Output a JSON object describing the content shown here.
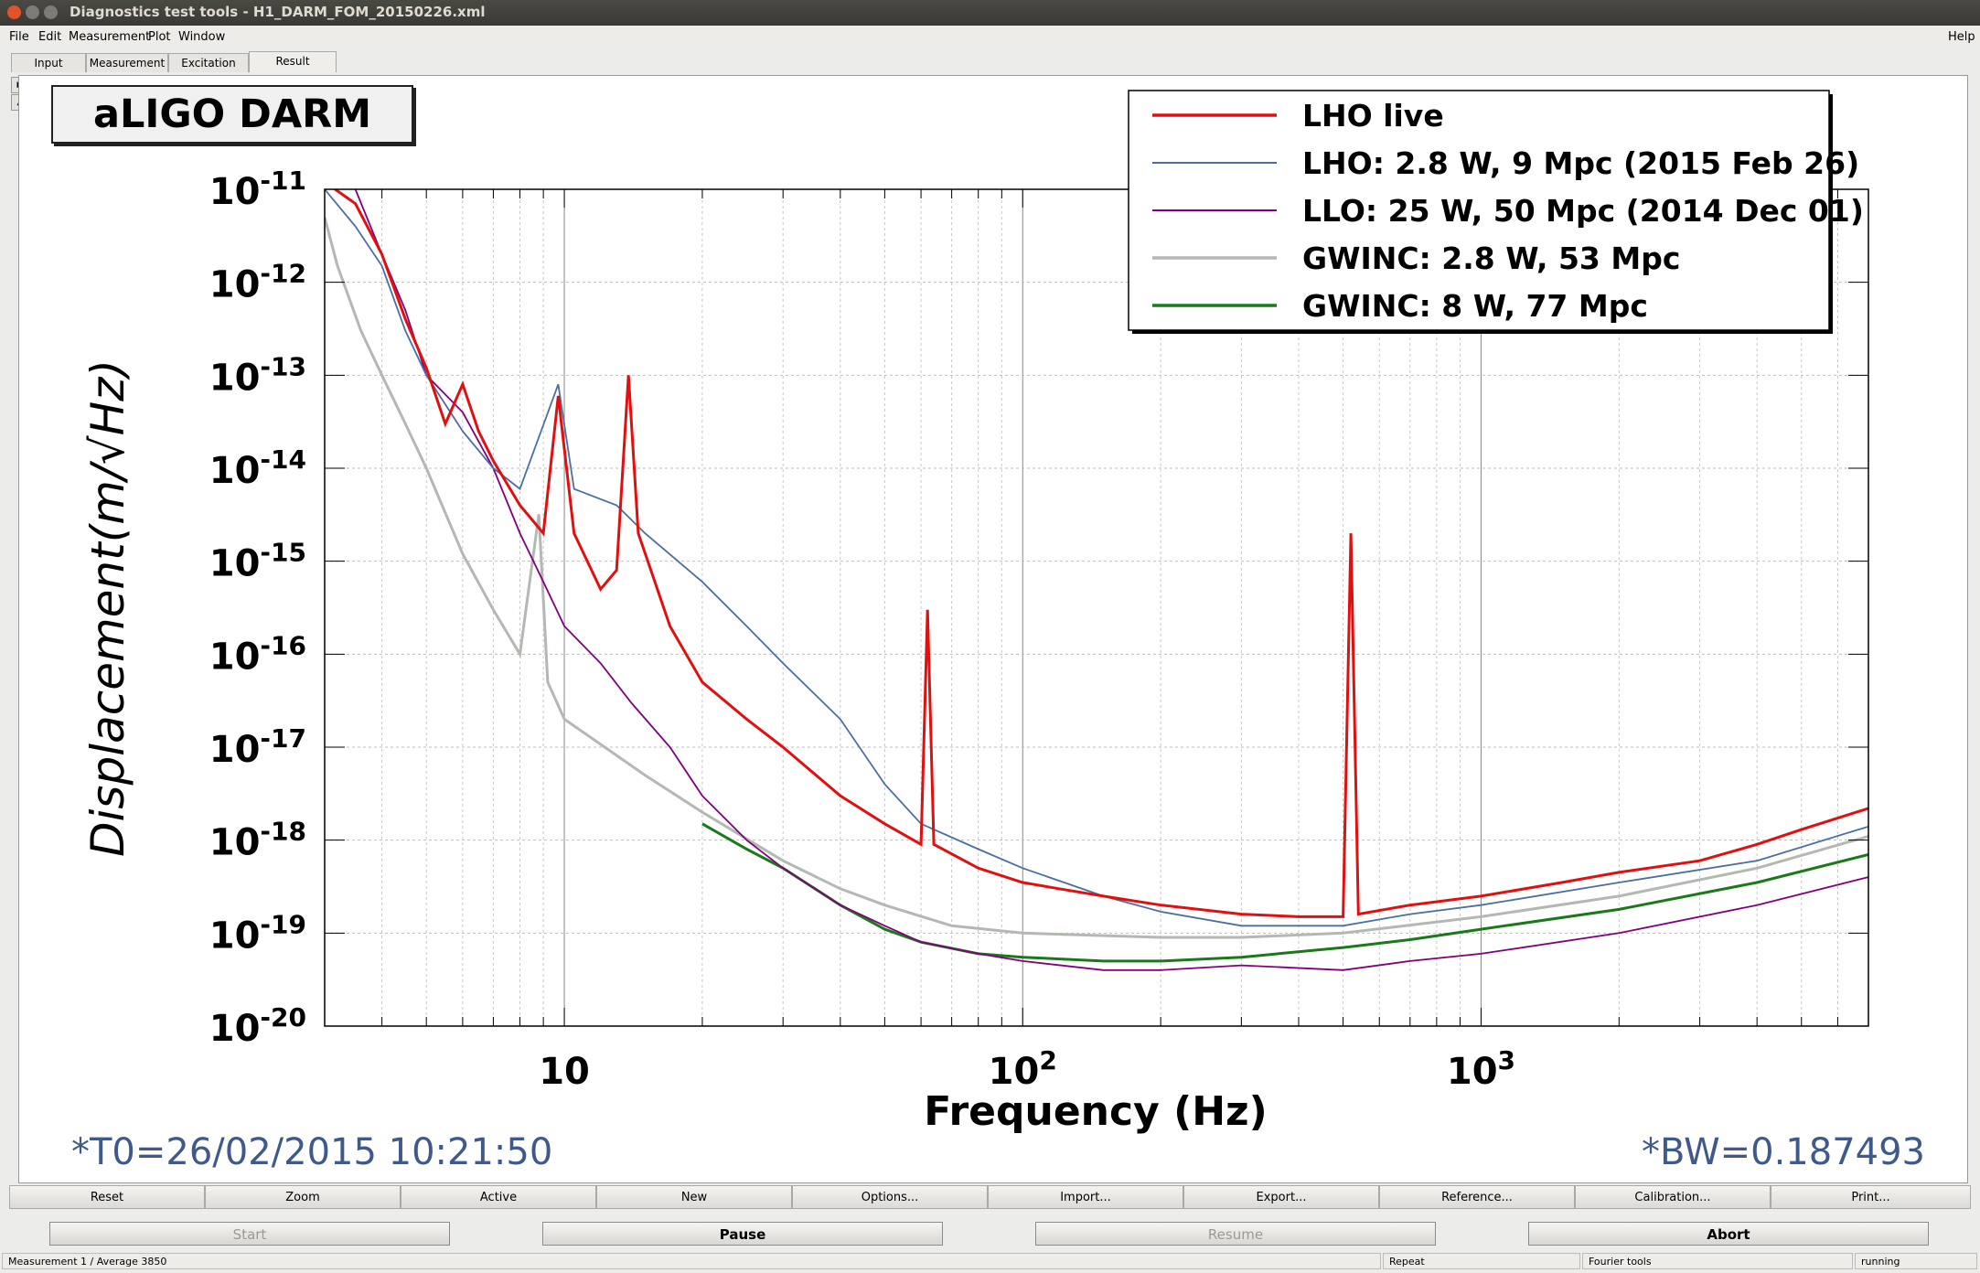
{
  "window": {
    "title": "Diagnostics test tools - H1_DARM_FOM_20150226.xml"
  },
  "menu": {
    "file": "File",
    "edit": "Edit",
    "measurement": "Measurement",
    "plot": "Plot",
    "window": "Window",
    "help": "Help"
  },
  "tabs": [
    "Input",
    "Measurement",
    "Excitation",
    "Result"
  ],
  "active_tab": "Result",
  "plot_title": "aLIGO DARM",
  "chart_data": {
    "type": "line",
    "title": "aLIGO DARM",
    "xlabel": "Frequency (Hz)",
    "ylabel": "Displacement(m/√Hz)",
    "xscale": "log",
    "yscale": "log",
    "xlim": [
      3,
      7000
    ],
    "ylim": [
      1e-20,
      1e-11
    ],
    "grid": true,
    "legend_position": "top-right",
    "x_tick_labels": [
      "10",
      "10^2",
      "10^3"
    ],
    "y_tick_labels": [
      "10^-11",
      "10^-12",
      "10^-13",
      "10^-14",
      "10^-15",
      "10^-16",
      "10^-17",
      "10^-18",
      "10^-19",
      "10^-20"
    ],
    "series": [
      {
        "name": "LHO live",
        "color": "#e01010",
        "points": [
          [
            3,
            1.2e-11
          ],
          [
            3.5,
            7e-12
          ],
          [
            4,
            2e-12
          ],
          [
            4.5,
            4e-13
          ],
          [
            5,
            1.2e-13
          ],
          [
            5.5,
            3e-14
          ],
          [
            6,
            8e-14
          ],
          [
            6.5,
            2.5e-14
          ],
          [
            7,
            1.2e-14
          ],
          [
            8,
            4e-15
          ],
          [
            9,
            2e-15
          ],
          [
            9.7,
            6e-14
          ],
          [
            10.5,
            2e-15
          ],
          [
            12,
            5e-16
          ],
          [
            13,
            8e-16
          ],
          [
            13.8,
            1e-13
          ],
          [
            14.5,
            2e-15
          ],
          [
            17,
            2e-16
          ],
          [
            20,
            5e-17
          ],
          [
            25,
            2e-17
          ],
          [
            30,
            1e-17
          ],
          [
            40,
            3e-18
          ],
          [
            50,
            1.5e-18
          ],
          [
            60,
            9e-19
          ],
          [
            62,
            3e-16
          ],
          [
            64,
            9e-19
          ],
          [
            80,
            5e-19
          ],
          [
            100,
            3.5e-19
          ],
          [
            120,
            3e-19
          ],
          [
            150,
            2.5e-19
          ],
          [
            200,
            2e-19
          ],
          [
            300,
            1.6e-19
          ],
          [
            400,
            1.5e-19
          ],
          [
            500,
            1.5e-19
          ],
          [
            520,
            2e-15
          ],
          [
            540,
            1.6e-19
          ],
          [
            700,
            2e-19
          ],
          [
            1000,
            2.5e-19
          ],
          [
            1500,
            3.5e-19
          ],
          [
            2000,
            4.5e-19
          ],
          [
            3000,
            6e-19
          ],
          [
            4000,
            9e-19
          ],
          [
            5000,
            1.3e-18
          ],
          [
            7000,
            2.2e-18
          ]
        ]
      },
      {
        "name": "LHO: 2.8 W, 9 Mpc (2015 Feb 26)",
        "color": "#4a6fa5",
        "points": [
          [
            3,
            1e-11
          ],
          [
            3.5,
            4e-12
          ],
          [
            4,
            1.5e-12
          ],
          [
            4.5,
            3e-13
          ],
          [
            5,
            1e-13
          ],
          [
            6,
            2.5e-14
          ],
          [
            7,
            1e-14
          ],
          [
            8,
            6e-15
          ],
          [
            9.7,
            8e-14
          ],
          [
            10.5,
            6e-15
          ],
          [
            13,
            4e-15
          ],
          [
            15,
            2e-15
          ],
          [
            20,
            6e-16
          ],
          [
            25,
            2e-16
          ],
          [
            30,
            8e-17
          ],
          [
            40,
            2e-17
          ],
          [
            50,
            4e-18
          ],
          [
            60,
            1.5e-18
          ],
          [
            80,
            8e-19
          ],
          [
            100,
            5e-19
          ],
          [
            150,
            2.5e-19
          ],
          [
            200,
            1.7e-19
          ],
          [
            300,
            1.2e-19
          ],
          [
            500,
            1.2e-19
          ],
          [
            700,
            1.6e-19
          ],
          [
            1000,
            2e-19
          ],
          [
            2000,
            3.5e-19
          ],
          [
            4000,
            6e-19
          ],
          [
            7000,
            1.4e-18
          ]
        ]
      },
      {
        "name": "LLO: 25 W, 50 Mpc (2014 Dec 01)",
        "color": "#800080",
        "points": [
          [
            3.5,
            1e-11
          ],
          [
            4,
            2e-12
          ],
          [
            4.5,
            5e-13
          ],
          [
            5,
            1e-13
          ],
          [
            6,
            4e-14
          ],
          [
            7,
            1e-14
          ],
          [
            8,
            2e-15
          ],
          [
            9,
            6e-16
          ],
          [
            10,
            2e-16
          ],
          [
            12,
            8e-17
          ],
          [
            14,
            3e-17
          ],
          [
            17,
            1e-17
          ],
          [
            20,
            3e-18
          ],
          [
            25,
            1e-18
          ],
          [
            30,
            5e-19
          ],
          [
            40,
            2e-19
          ],
          [
            50,
            1.2e-19
          ],
          [
            60,
            8e-20
          ],
          [
            80,
            6e-20
          ],
          [
            100,
            5e-20
          ],
          [
            150,
            4e-20
          ],
          [
            200,
            4e-20
          ],
          [
            300,
            4.5e-20
          ],
          [
            500,
            4e-20
          ],
          [
            700,
            5e-20
          ],
          [
            1000,
            6e-20
          ],
          [
            2000,
            1e-19
          ],
          [
            4000,
            2e-19
          ],
          [
            7000,
            4e-19
          ]
        ]
      },
      {
        "name": "GWINC: 2.8 W, 53 Mpc",
        "color": "#b4b8b2",
        "points": [
          [
            3,
            5e-12
          ],
          [
            3.2,
            1.5e-12
          ],
          [
            3.6,
            3e-13
          ],
          [
            4,
            1e-13
          ],
          [
            4.5,
            3e-14
          ],
          [
            5,
            1e-14
          ],
          [
            6,
            1.2e-15
          ],
          [
            7,
            3e-16
          ],
          [
            8,
            1e-16
          ],
          [
            8.8,
            3.2e-15
          ],
          [
            9.2,
            5e-17
          ],
          [
            10,
            2e-17
          ],
          [
            15,
            5e-18
          ],
          [
            20,
            2e-18
          ],
          [
            30,
            6e-19
          ],
          [
            40,
            3e-19
          ],
          [
            50,
            2e-19
          ],
          [
            70,
            1.2e-19
          ],
          [
            100,
            1e-19
          ],
          [
            200,
            9e-20
          ],
          [
            300,
            9e-20
          ],
          [
            500,
            1e-19
          ],
          [
            1000,
            1.5e-19
          ],
          [
            2000,
            2.5e-19
          ],
          [
            4000,
            5e-19
          ],
          [
            7000,
            1.1e-18
          ]
        ]
      },
      {
        "name": "GWINC: 8 W, 77 Mpc",
        "color": "#1a7a1a",
        "points": [
          [
            20,
            1.5e-18
          ],
          [
            25,
            8e-19
          ],
          [
            30,
            5e-19
          ],
          [
            40,
            2e-19
          ],
          [
            50,
            1.1e-19
          ],
          [
            60,
            8e-20
          ],
          [
            80,
            6e-20
          ],
          [
            100,
            5.5e-20
          ],
          [
            150,
            5e-20
          ],
          [
            200,
            5e-20
          ],
          [
            300,
            5.5e-20
          ],
          [
            500,
            7e-20
          ],
          [
            700,
            8.5e-20
          ],
          [
            1000,
            1.1e-19
          ],
          [
            2000,
            1.8e-19
          ],
          [
            4000,
            3.5e-19
          ],
          [
            7000,
            7e-19
          ]
        ]
      }
    ]
  },
  "footer": {
    "t0": "*T0=26/02/2015 10:21:50",
    "bw": "*BW=0.187493"
  },
  "plot_buttons": [
    "Reset",
    "Zoom",
    "Active",
    "New",
    "Options...",
    "Import...",
    "Export...",
    "Reference...",
    "Calibration...",
    "Print..."
  ],
  "control_buttons": {
    "start": "Start",
    "pause": "Pause",
    "resume": "Resume",
    "abort": "Abort"
  },
  "status": {
    "measurement": "Measurement 1 / Average 3850",
    "repeat": "Repeat",
    "tool": "Fourier tools",
    "state": "running"
  }
}
